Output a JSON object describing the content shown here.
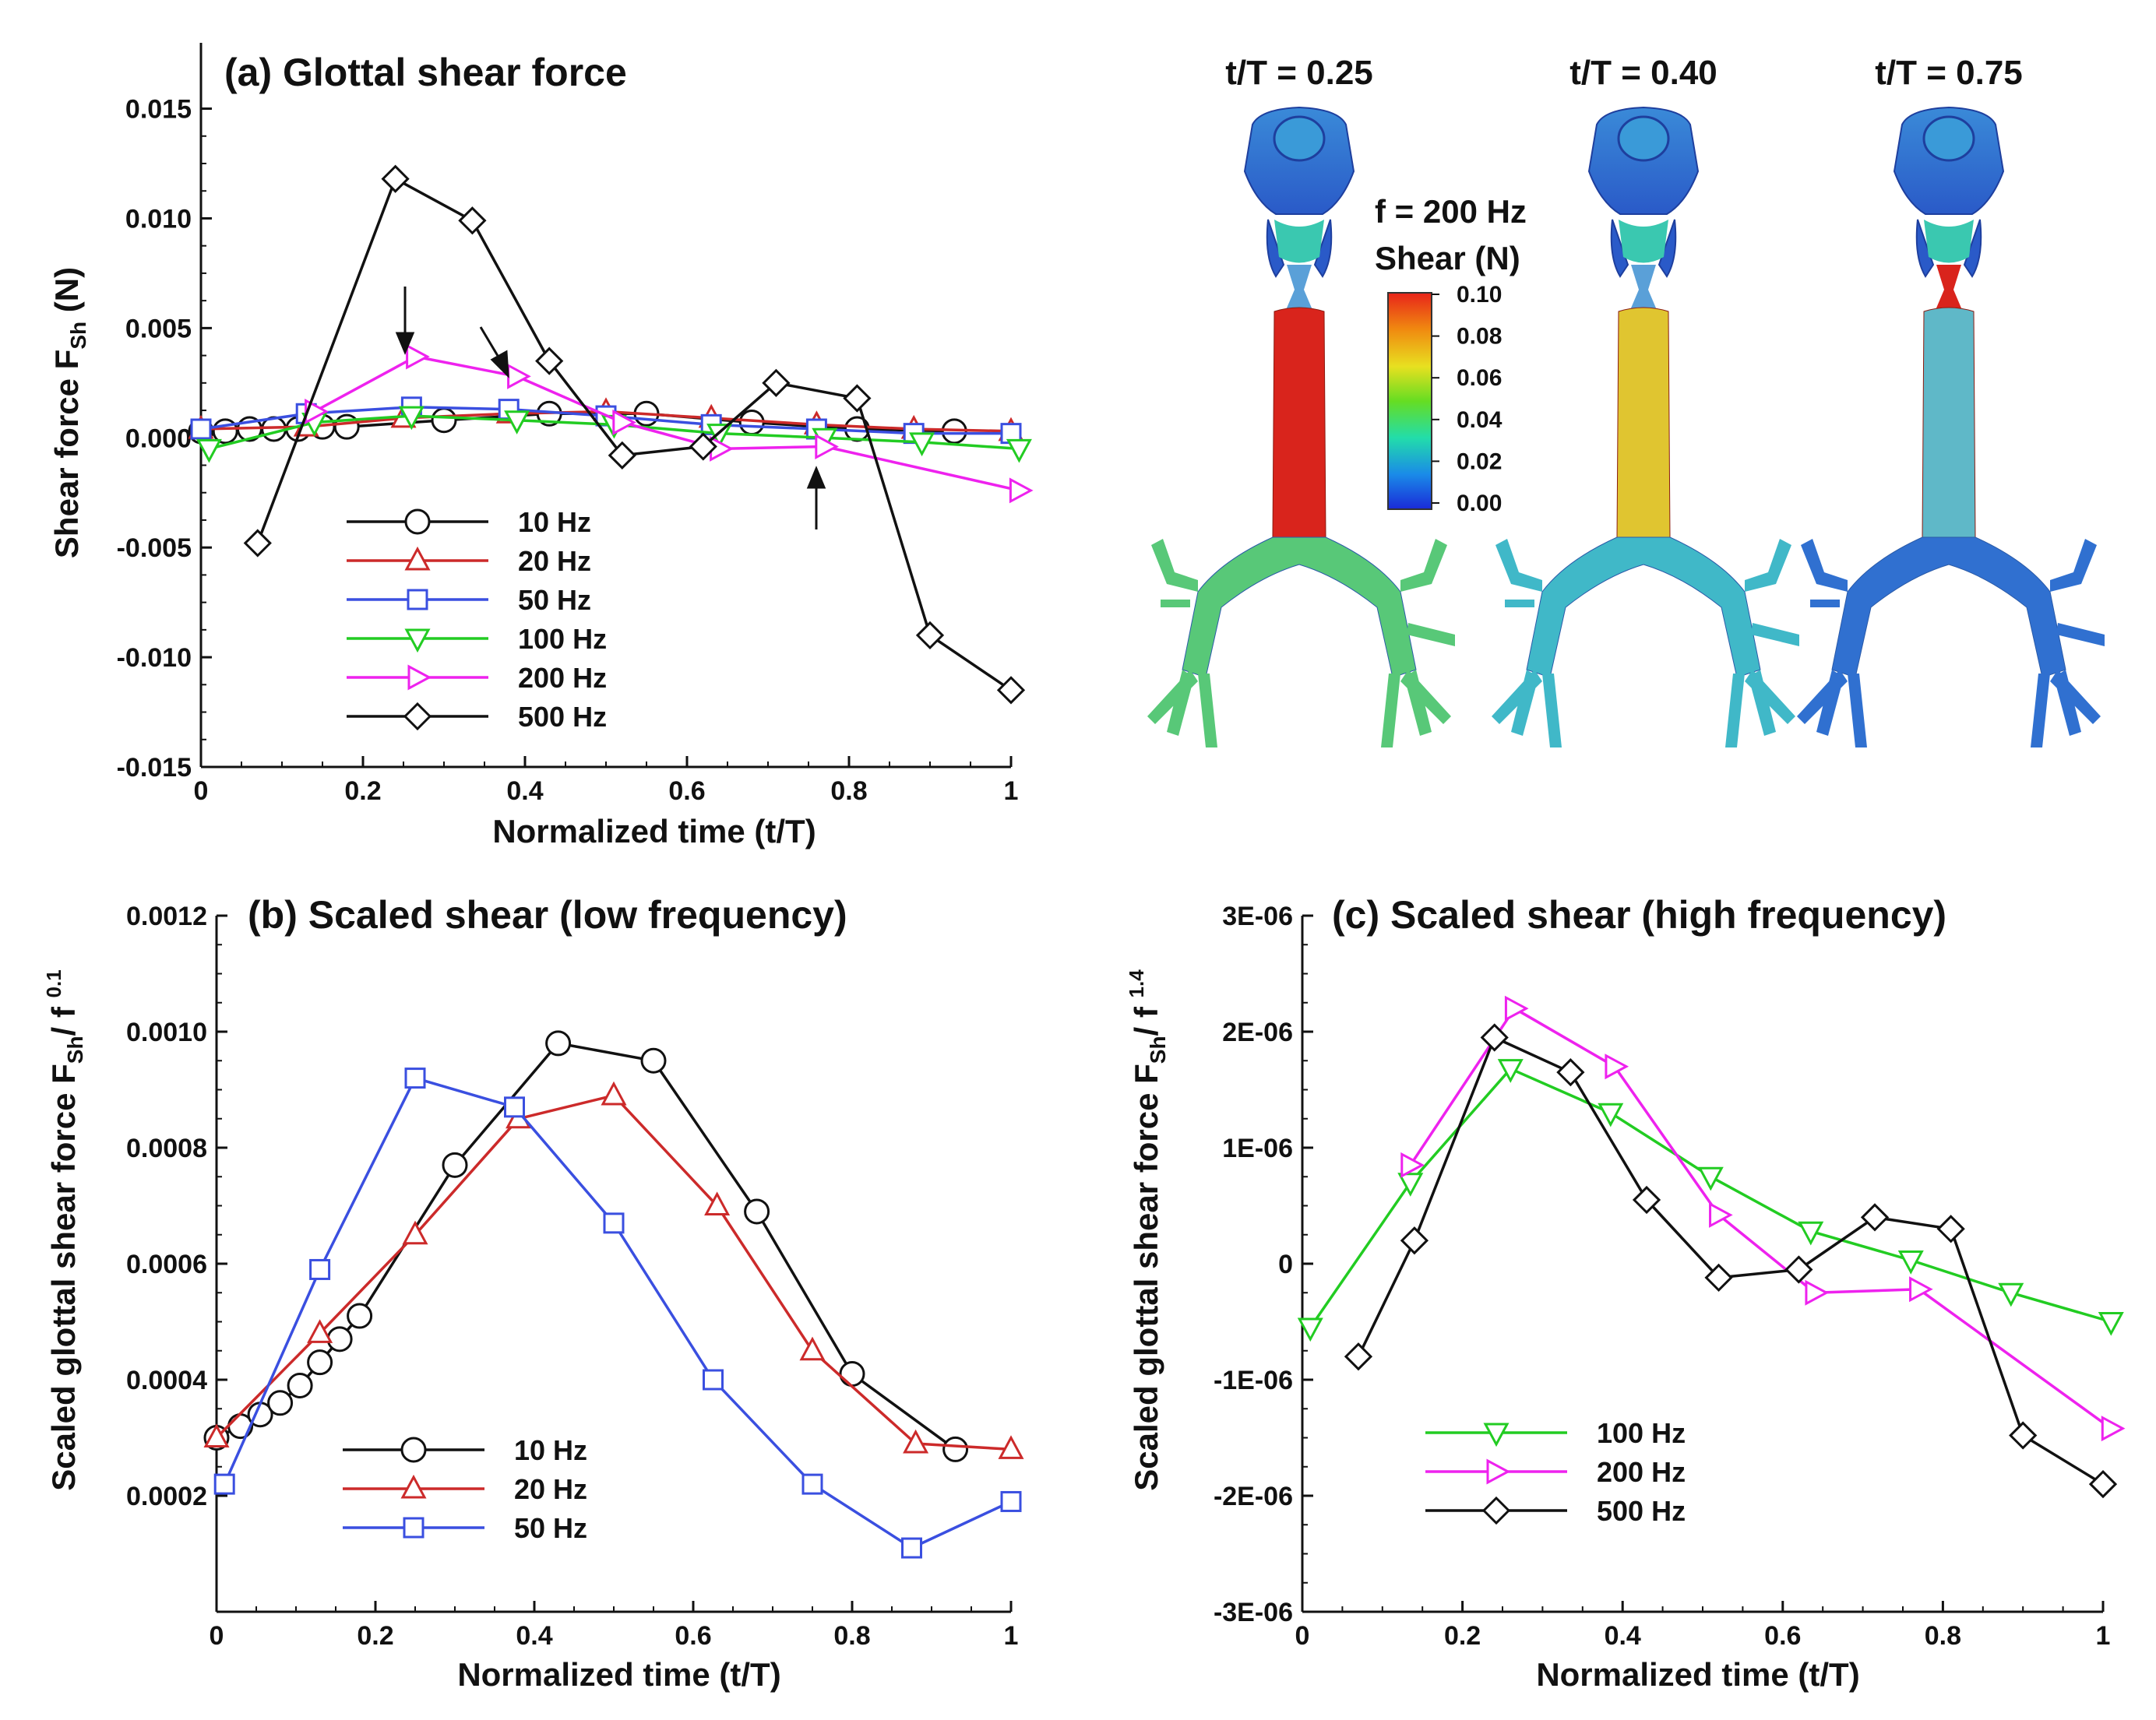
{
  "figure_panels": {
    "a_title": "(a) Glottal shear force",
    "b_title": "(b) Scaled shear (low frequency)",
    "c_title": "(c) Scaled shear (high frequency)"
  },
  "chart_data": [
    {
      "id": "a",
      "type": "line",
      "title": "(a) Glottal shear force",
      "xlabel": "Normalized time (t/T)",
      "ylabel": "Shear force F",
      "ylabel_sub": "Sh",
      "ylabel_tail": " (N)",
      "xlim": [
        0,
        1
      ],
      "ylim": [
        -0.015,
        0.018
      ],
      "xticks": [
        0,
        0.2,
        0.4,
        0.6,
        0.8,
        1
      ],
      "xtick_labels": [
        "0",
        "0.2",
        "0.4",
        "0.6",
        "0.8",
        "1"
      ],
      "yticks": [
        -0.015,
        -0.01,
        -0.005,
        0,
        0.005,
        0.01,
        0.015
      ],
      "ytick_labels": [
        "-0.015",
        "-0.010",
        "-0.005",
        "0.000",
        "0.005",
        "0.010",
        "0.015"
      ],
      "legend_position": "bottom-left",
      "series": [
        {
          "name": "10 Hz",
          "color": "#111111",
          "marker": "circle",
          "x": [
            0.0,
            0.03,
            0.06,
            0.09,
            0.12,
            0.15,
            0.18,
            0.3,
            0.43,
            0.55,
            0.68,
            0.81,
            0.93
          ],
          "y": [
            0.0003,
            0.0003,
            0.0004,
            0.0004,
            0.0004,
            0.0005,
            0.0005,
            0.0008,
            0.0011,
            0.0011,
            0.0007,
            0.0004,
            0.0003
          ]
        },
        {
          "name": "20 Hz",
          "color": "#cc2a2a",
          "marker": "triangle-up",
          "x": [
            0.0,
            0.13,
            0.25,
            0.38,
            0.5,
            0.63,
            0.76,
            0.88,
            1.0
          ],
          "y": [
            0.0004,
            0.0005,
            0.0009,
            0.0011,
            0.0012,
            0.0009,
            0.0006,
            0.0004,
            0.0003
          ]
        },
        {
          "name": "50 Hz",
          "color": "#3a4fe0",
          "marker": "square",
          "x": [
            0.0,
            0.13,
            0.26,
            0.38,
            0.5,
            0.63,
            0.76,
            0.88,
            1.0
          ],
          "y": [
            0.0004,
            0.0011,
            0.0014,
            0.0013,
            0.001,
            0.0006,
            0.0004,
            0.0002,
            0.0002
          ]
        },
        {
          "name": "100 Hz",
          "color": "#22cc22",
          "marker": "triangle-down",
          "x": [
            0.01,
            0.14,
            0.26,
            0.39,
            0.51,
            0.64,
            0.77,
            0.89,
            1.01
          ],
          "y": [
            -0.0005,
            0.0007,
            0.001,
            0.0008,
            0.0006,
            0.0002,
            0.0,
            -0.0002,
            -0.0005
          ]
        },
        {
          "name": "200 Hz",
          "color": "#ee22ee",
          "marker": "triangle-right",
          "x": [
            0.14,
            0.265,
            0.39,
            0.52,
            0.64,
            0.77,
            1.01
          ],
          "y": [
            0.0012,
            0.0037,
            0.0028,
            0.0007,
            -0.0005,
            -0.0004,
            -0.0024
          ]
        },
        {
          "name": "500 Hz",
          "color": "#111111",
          "marker": "diamond",
          "x": [
            0.07,
            0.24,
            0.335,
            0.43,
            0.52,
            0.62,
            0.71,
            0.81,
            0.9,
            1.0
          ],
          "y": [
            -0.0048,
            0.0118,
            0.0099,
            0.0035,
            -0.0008,
            -0.0004,
            0.0025,
            0.0018,
            -0.009,
            -0.0115
          ]
        }
      ]
    },
    {
      "id": "b",
      "type": "line",
      "title": "(b) Scaled shear (low frequency)",
      "xlabel": "Normalized time (t/T)",
      "ylabel": "Scaled glottal shear force F",
      "ylabel_sub": "Sh",
      "ylabel_mid": "/ f ",
      "ylabel_sup": "0.1",
      "xlim": [
        0,
        1
      ],
      "ylim": [
        0,
        0.0012
      ],
      "xticks": [
        0,
        0.2,
        0.4,
        0.6,
        0.8,
        1
      ],
      "xtick_labels": [
        "0",
        "0.2",
        "0.4",
        "0.6",
        "0.8",
        "1"
      ],
      "yticks": [
        0.0002,
        0.0004,
        0.0006,
        0.0008,
        0.001,
        0.0012
      ],
      "ytick_labels": [
        "0.0002",
        "0.0004",
        "0.0006",
        "0.0008",
        "0.0010",
        "0.0012"
      ],
      "legend_position": "bottom-left",
      "series": [
        {
          "name": "10 Hz",
          "color": "#111111",
          "marker": "circle",
          "x": [
            0.0,
            0.03,
            0.055,
            0.08,
            0.105,
            0.13,
            0.155,
            0.18,
            0.3,
            0.43,
            0.55,
            0.68,
            0.8,
            0.93
          ],
          "y": [
            0.0003,
            0.00032,
            0.00034,
            0.00036,
            0.00039,
            0.00043,
            0.00047,
            0.00051,
            0.00077,
            0.00098,
            0.00095,
            0.00069,
            0.00041,
            0.00028
          ]
        },
        {
          "name": "20 Hz",
          "color": "#cc2a2a",
          "marker": "triangle-up",
          "x": [
            0.0,
            0.13,
            0.25,
            0.38,
            0.5,
            0.63,
            0.75,
            0.88,
            1.0
          ],
          "y": [
            0.0003,
            0.00048,
            0.00065,
            0.00085,
            0.00089,
            0.0007,
            0.00045,
            0.00029,
            0.00028
          ]
        },
        {
          "name": "50 Hz",
          "color": "#3a4fe0",
          "marker": "square",
          "x": [
            0.01,
            0.13,
            0.25,
            0.375,
            0.5,
            0.625,
            0.75,
            0.875,
            1.0
          ],
          "y": [
            0.00022,
            0.00059,
            0.00092,
            0.00087,
            0.00067,
            0.0004,
            0.00022,
            0.00011,
            0.00019
          ]
        }
      ]
    },
    {
      "id": "c",
      "type": "line",
      "title": "(c) Scaled shear (high frequency)",
      "xlabel": "Normalized time (t/T)",
      "ylabel": "Scaled glottal shear force F",
      "ylabel_sub": "Sh",
      "ylabel_mid": "/ f ",
      "ylabel_sup": "1.4",
      "xlim": [
        0,
        1
      ],
      "ylim": [
        -3e-06,
        3e-06
      ],
      "xticks": [
        0,
        0.2,
        0.4,
        0.6,
        0.8,
        1
      ],
      "xtick_labels": [
        "0",
        "0.2",
        "0.4",
        "0.6",
        "0.8",
        "1"
      ],
      "yticks": [
        -3e-06,
        -2e-06,
        -1e-06,
        0,
        1e-06,
        2e-06,
        3e-06
      ],
      "ytick_labels": [
        "-3E-06",
        "-2E-06",
        "-1E-06",
        "0",
        "1E-06",
        "2E-06",
        "3E-06"
      ],
      "legend_position": "bottom-left",
      "series": [
        {
          "name": "100 Hz",
          "color": "#22cc22",
          "marker": "triangle-down",
          "x": [
            0.01,
            0.135,
            0.26,
            0.385,
            0.51,
            0.635,
            0.76,
            0.885,
            1.01
          ],
          "y": [
            -5.5e-07,
            7e-07,
            1.68e-06,
            1.3e-06,
            7.5e-07,
            2.8e-07,
            3e-08,
            -2.5e-07,
            -5e-07
          ]
        },
        {
          "name": "200 Hz",
          "color": "#ee22ee",
          "marker": "triangle-right",
          "x": [
            0.135,
            0.265,
            0.39,
            0.52,
            0.64,
            0.77,
            1.01
          ],
          "y": [
            8.5e-07,
            2.2e-06,
            1.7e-06,
            4.2e-07,
            -2.5e-07,
            -2.2e-07,
            -1.42e-06
          ]
        },
        {
          "name": "500 Hz",
          "color": "#111111",
          "marker": "diamond",
          "x": [
            0.07,
            0.14,
            0.24,
            0.335,
            0.43,
            0.52,
            0.62,
            0.715,
            0.81,
            0.9,
            1.0
          ],
          "y": [
            -8e-07,
            2e-07,
            1.95e-06,
            1.65e-06,
            5.5e-07,
            -1.2e-07,
            -5e-08,
            4e-07,
            3e-07,
            -1.48e-06,
            -1.9e-06
          ]
        }
      ]
    }
  ],
  "model_panel": {
    "times": [
      "t/T = 0.25",
      "t/T = 0.40",
      "t/T = 0.75"
    ],
    "freq_label": "f = 200 Hz",
    "colorbar_title": "Shear (N)",
    "colorbar_ticks": [
      "0.10",
      "0.08",
      "0.06",
      "0.04",
      "0.02",
      "0.00"
    ],
    "colorbar_colors": [
      "#e8241a",
      "#f08a10",
      "#e8e020",
      "#66dd22",
      "#22ddaa",
      "#1a8ae8",
      "#1a2ad8"
    ],
    "trachea_colors": [
      "#d9241c",
      "#e0c530",
      "#5fb8c8"
    ],
    "bronchi_colors": [
      "#58c878",
      "#40b8c8",
      "#3070d0"
    ]
  }
}
